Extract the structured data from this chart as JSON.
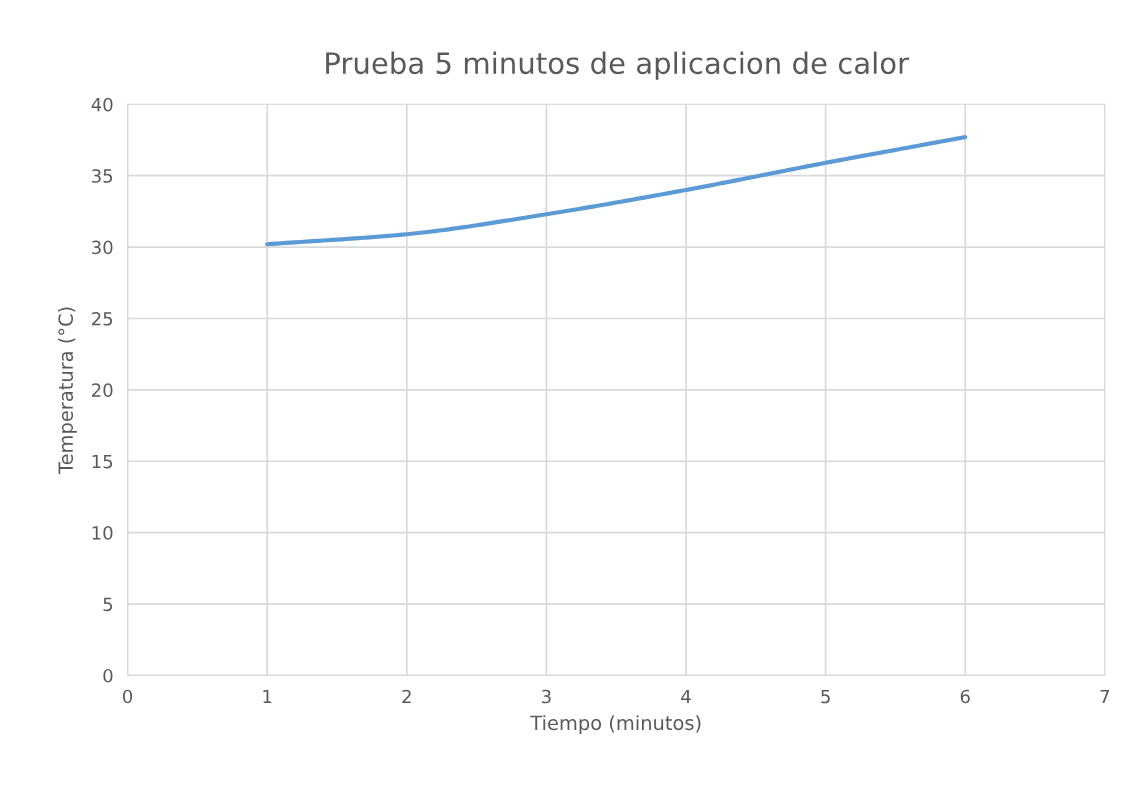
{
  "chart_data": {
    "type": "line",
    "title": "Prueba 5 minutos de aplicacion de calor",
    "xlabel": "Tiempo (minutos)",
    "ylabel": "Temperatura (°C)",
    "x": [
      1,
      2,
      3,
      4,
      5,
      6
    ],
    "series": [
      {
        "color": "#5b9bd5",
        "values": [
          30.2,
          30.9,
          32.3,
          34.0,
          35.9,
          37.7
        ]
      }
    ],
    "xlim": [
      0,
      7
    ],
    "xticks": [
      0,
      1,
      2,
      3,
      4,
      5,
      6,
      7
    ],
    "ylim": [
      0,
      40
    ],
    "yticks": [
      0,
      5,
      10,
      15,
      20,
      25,
      30,
      35,
      40
    ],
    "grid": true,
    "marker": "none",
    "line_style": "solid"
  }
}
